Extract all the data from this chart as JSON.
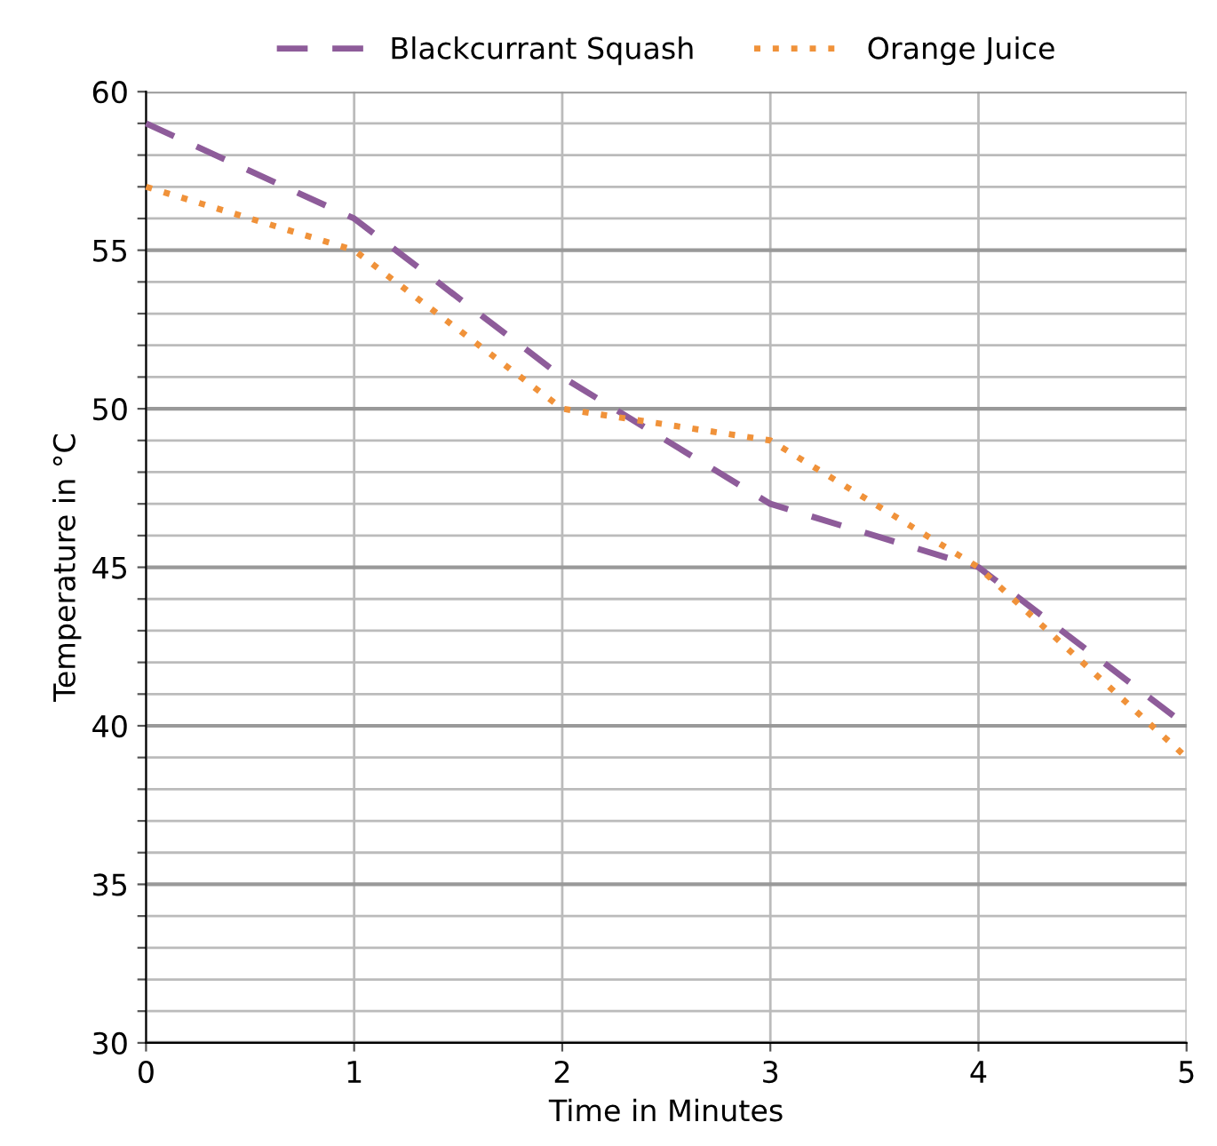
{
  "chart_data": {
    "type": "line",
    "xlabel": "Time in Minutes",
    "ylabel": "Temperature in °C",
    "x": [
      0,
      1,
      2,
      3,
      4,
      5
    ],
    "series": [
      {
        "name": "Blackcurrant Squash",
        "color": "#8e5c9a",
        "values": [
          59,
          56,
          51,
          47,
          45,
          40
        ],
        "line_style": "dashed"
      },
      {
        "name": "Orange Juice",
        "color": "#f0923a",
        "values": [
          57,
          55,
          50,
          49,
          45,
          39
        ],
        "line_style": "dotted"
      }
    ],
    "xlim": [
      0,
      5
    ],
    "xticks": [
      0,
      1,
      2,
      3,
      4,
      5
    ],
    "ylim": [
      30,
      60
    ],
    "yticks": [
      30,
      {
        "value": 31,
        "label": null
      },
      {
        "value": 32,
        "label": null
      },
      {
        "value": 33,
        "label": null
      },
      {
        "value": 34,
        "label": null
      },
      35,
      {
        "value": 36,
        "label": null
      },
      {
        "value": 37,
        "label": null
      },
      {
        "value": 38,
        "label": null
      },
      {
        "value": 39,
        "label": null
      },
      40,
      {
        "value": 41,
        "label": null
      },
      {
        "value": 42,
        "label": null
      },
      {
        "value": 43,
        "label": null
      },
      {
        "value": 44,
        "label": null
      },
      45,
      {
        "value": 46,
        "label": null
      },
      {
        "value": 47,
        "label": null
      },
      {
        "value": 48,
        "label": null
      },
      {
        "value": 49,
        "label": null
      },
      50,
      {
        "value": 51,
        "label": null
      },
      {
        "value": 52,
        "label": null
      },
      {
        "value": 53,
        "label": null
      },
      {
        "value": 54,
        "label": null
      },
      55,
      {
        "value": 56,
        "label": null
      },
      {
        "value": 57,
        "label": null
      },
      {
        "value": 58,
        "label": null
      },
      {
        "value": 59,
        "label": null
      },
      60
    ],
    "grid": true,
    "legend": "top",
    "marker": "none"
  }
}
